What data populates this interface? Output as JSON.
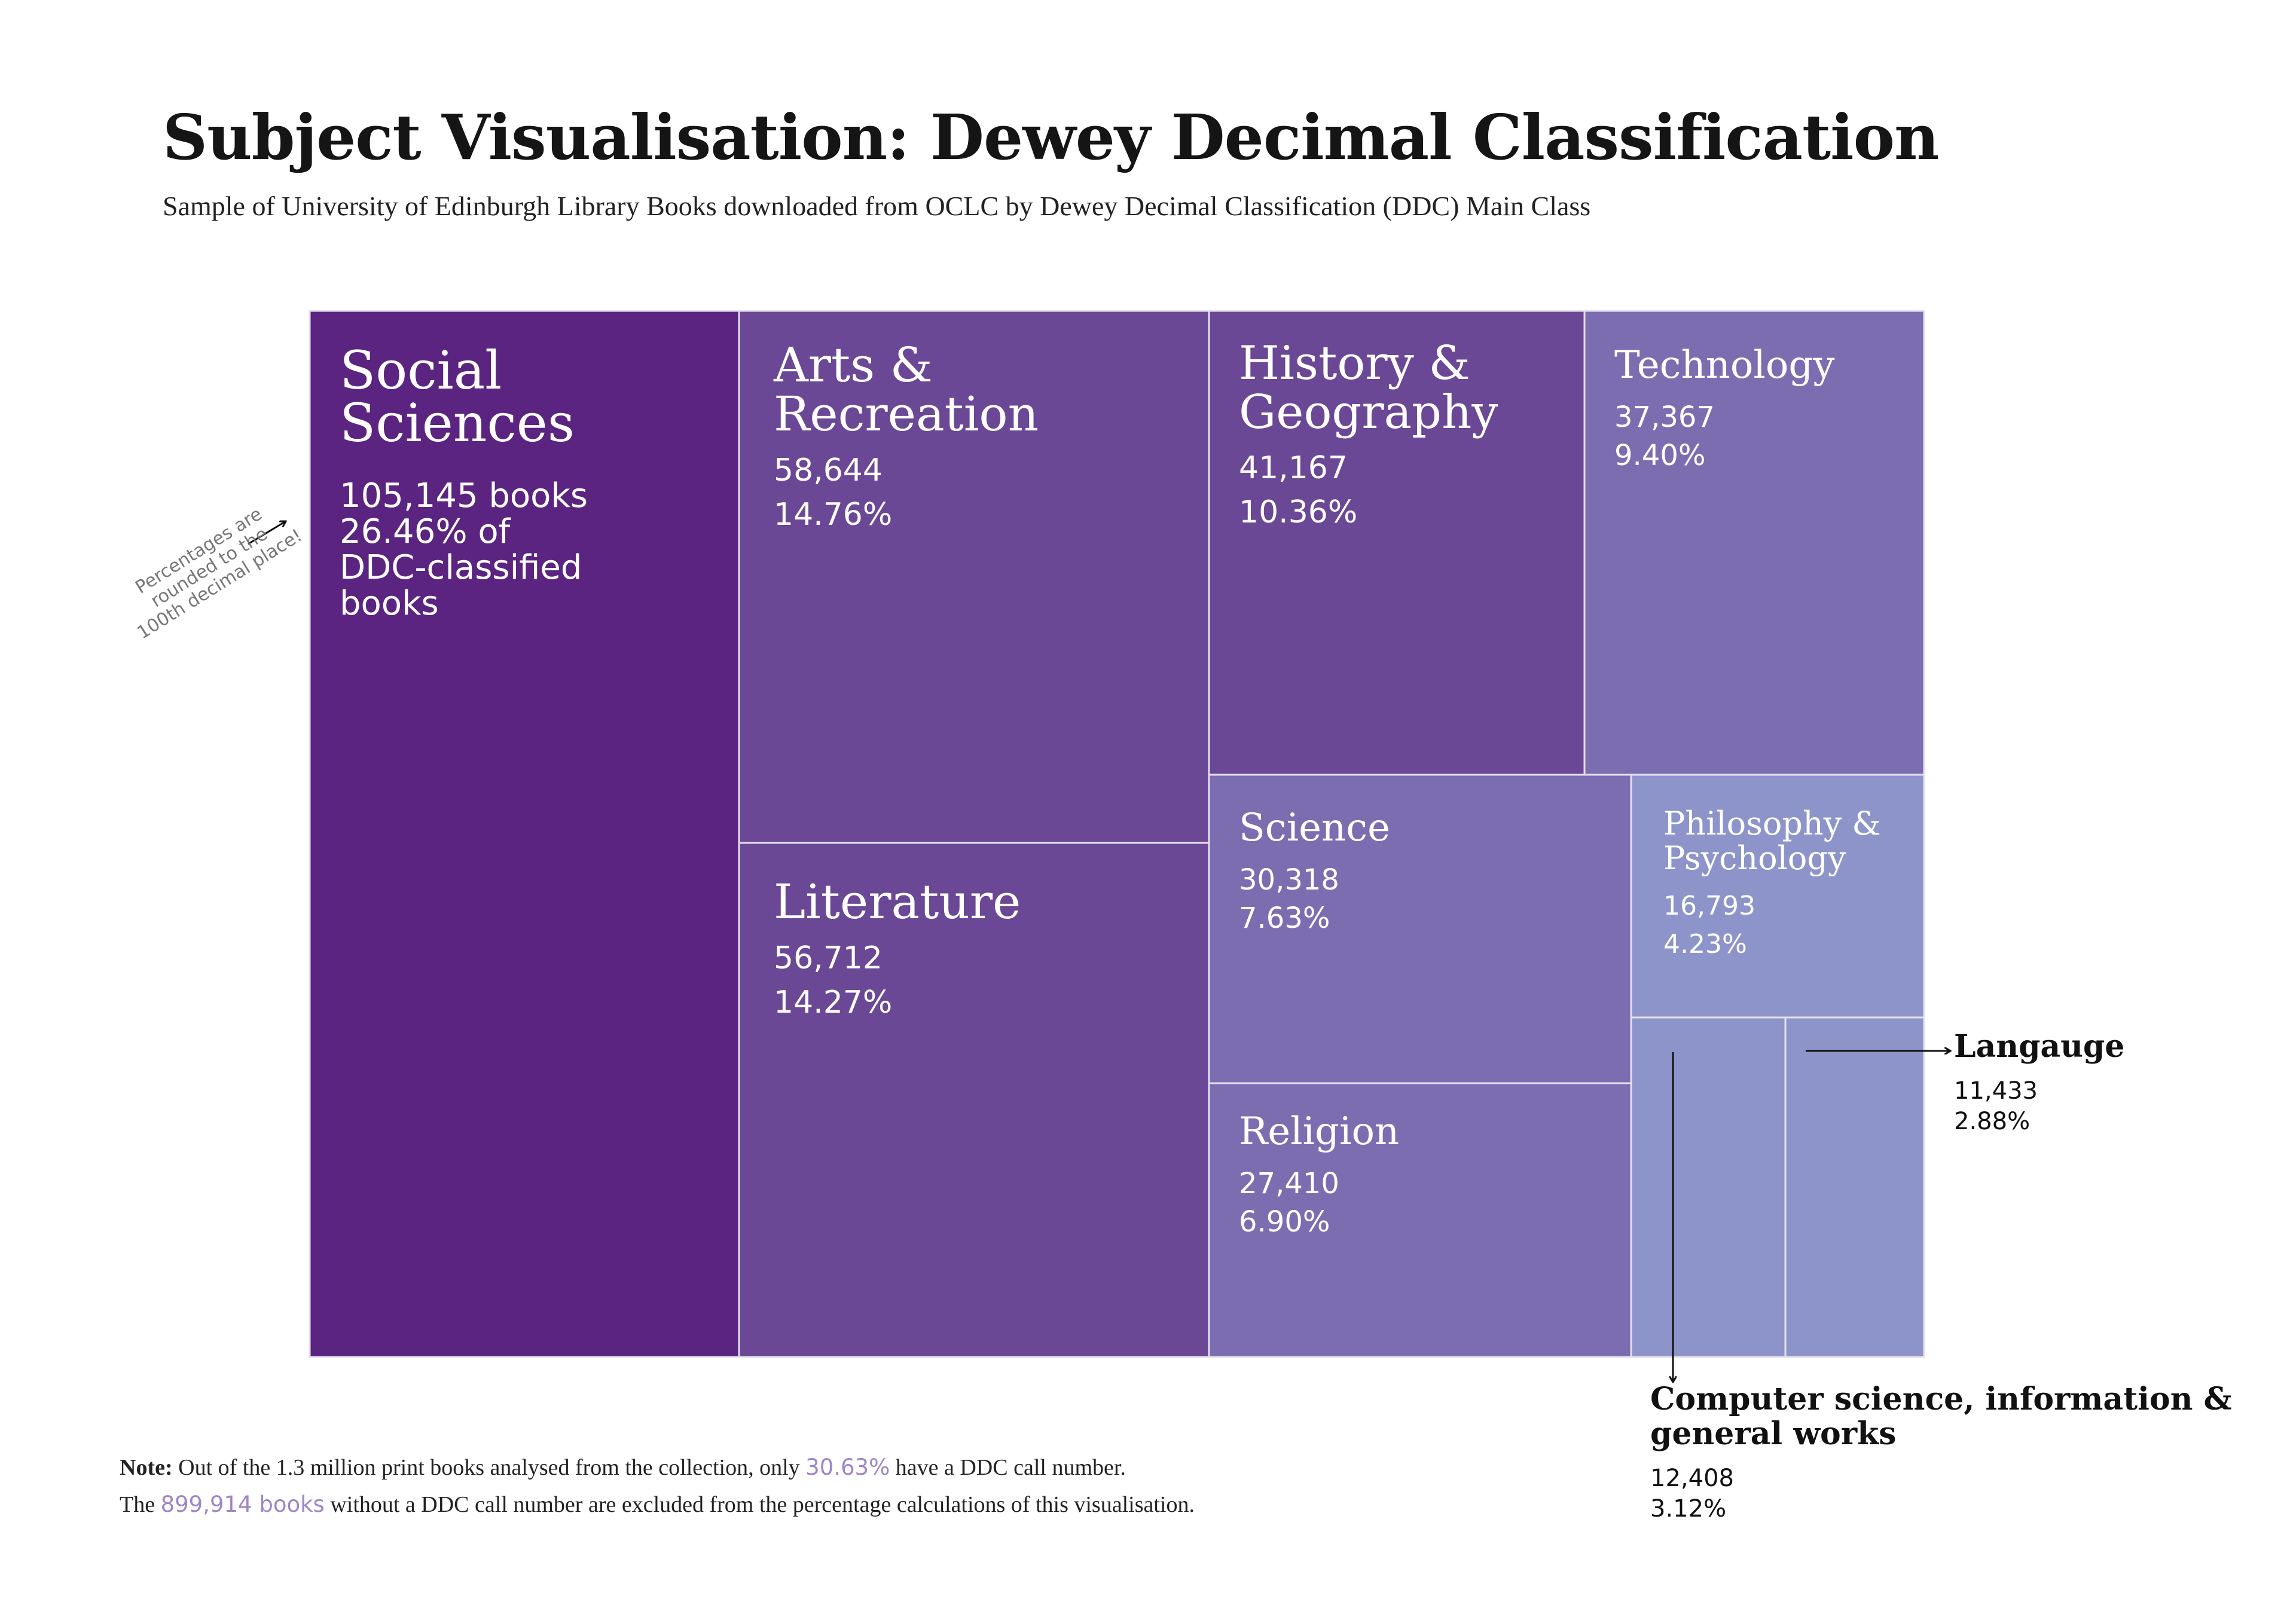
{
  "header": {
    "title": "Subject Visualisation: Dewey Decimal Classification",
    "subtitle": "Sample of University of Edinburgh Library Books downloaded from OCLC by Dewey Decimal Classification (DDC) Main Class"
  },
  "colors": {
    "darkest": "#5b2480",
    "dark": "#6b4895",
    "medium": "#7c6db1",
    "light": "#8d94c9",
    "highlight": "#9f85c8"
  },
  "chart_data": {
    "type": "treemap",
    "unit": "books",
    "items": [
      {
        "name": "Social Sciences",
        "value": 105145,
        "percent": "26.46%",
        "value_label": "105,145 books",
        "percent_label": "26.46% of DDC-classified books"
      },
      {
        "name": "Arts & Recreation",
        "value": 58644,
        "percent": "14.76%",
        "value_label": "58,644",
        "percent_label": "14.76%"
      },
      {
        "name": "Literature",
        "value": 56712,
        "percent": "14.27%",
        "value_label": "56,712",
        "percent_label": "14.27%"
      },
      {
        "name": "History & Geography",
        "value": 41167,
        "percent": "10.36%",
        "value_label": "41,167",
        "percent_label": "10.36%"
      },
      {
        "name": "Technology",
        "value": 37367,
        "percent": "9.40%",
        "value_label": "37,367",
        "percent_label": "9.40%"
      },
      {
        "name": "Science",
        "value": 30318,
        "percent": "7.63%",
        "value_label": "30,318",
        "percent_label": "7.63%"
      },
      {
        "name": "Religion",
        "value": 27410,
        "percent": "6.90%",
        "value_label": "27,410",
        "percent_label": "6.90%"
      },
      {
        "name": "Philosophy & Psychology",
        "value": 16793,
        "percent": "4.23%",
        "value_label": "16,793",
        "percent_label": "4.23%"
      },
      {
        "name": "Computer science, information & general works",
        "value": 12408,
        "percent": "3.12%",
        "value_label": "12,408",
        "percent_label": "3.12%"
      },
      {
        "name": "Langauge",
        "value": 11433,
        "percent": "2.88%",
        "value_label": "11,433",
        "percent_label": "2.88%"
      }
    ]
  },
  "annotation": {
    "rounding": "Percentages are rounded to the 100th decimal place!"
  },
  "note": {
    "label": "Note:",
    "line1_before": "Out of the 1.3 million print books analysed from the collection, only",
    "line1_highlight": "30.63%",
    "line1_after": "have a DDC call number.",
    "line2_before": "The",
    "line2_highlight": "899,914 books",
    "line2_after": "without a DDC call number are excluded from the percentage calculations of this visualisation."
  }
}
